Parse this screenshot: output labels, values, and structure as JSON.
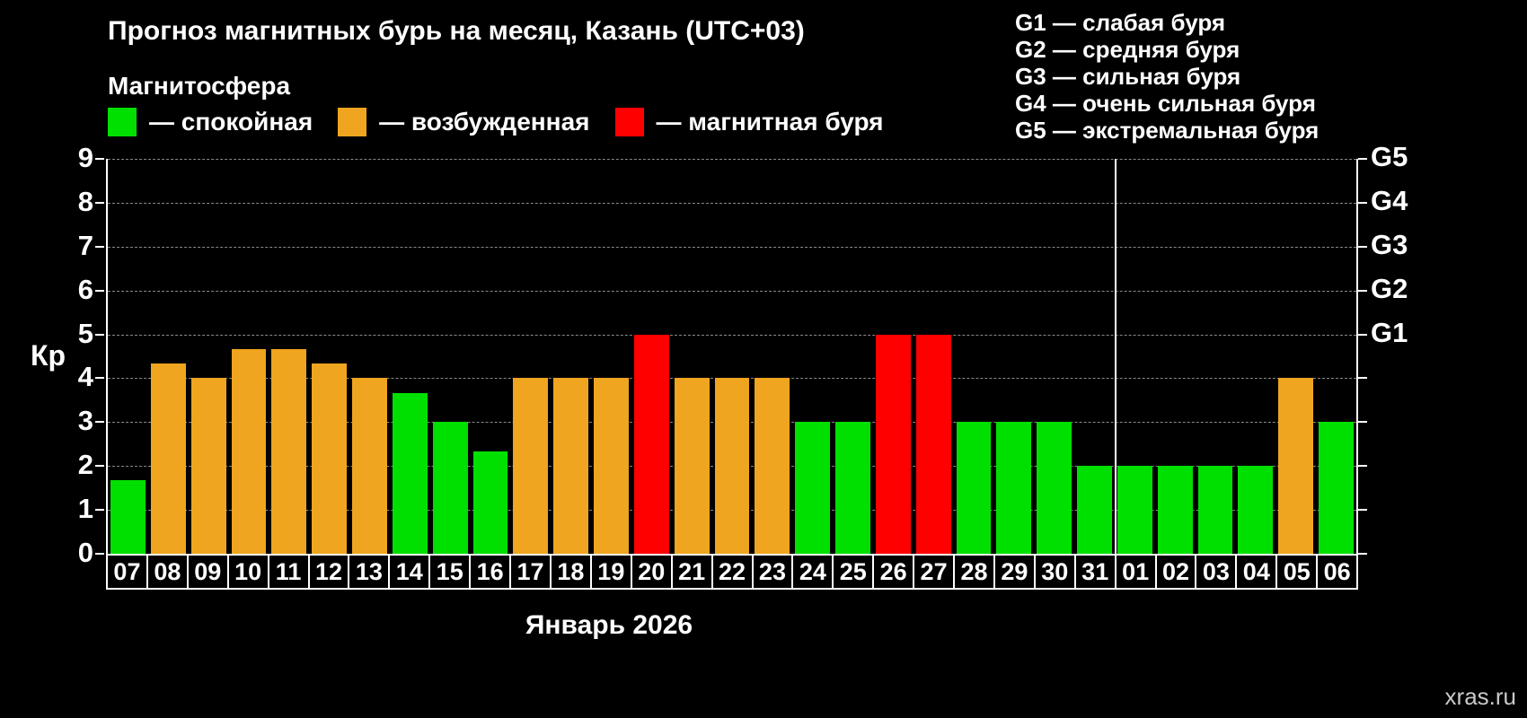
{
  "magnetosphere": {
    "heading": "Магнитосфера",
    "items": [
      {
        "key": "quiet",
        "label": "— спокойная",
        "color": "#00e000"
      },
      {
        "key": "excited",
        "label": "— возбужденная",
        "color": "#efa51f"
      },
      {
        "key": "storm",
        "label": "— магнитная буря",
        "color": "#fe0000"
      }
    ]
  },
  "g_legend": {
    "lines": [
      "G1 — слабая буря",
      "G2 — средняя буря",
      "G3 — сильная буря",
      "G4 — очень сильная буря",
      "G5 — экстремальная буря"
    ]
  },
  "axes": {
    "y_label": "Кр",
    "x_label": "Январь 2026"
  },
  "watermark": "xras.ru",
  "chart_data": {
    "type": "bar",
    "title": "Прогноз магнитных бурь на месяц, Казань (UTC+03)",
    "categories": [
      "07",
      "08",
      "09",
      "10",
      "11",
      "12",
      "13",
      "14",
      "15",
      "16",
      "17",
      "18",
      "19",
      "20",
      "21",
      "22",
      "23",
      "24",
      "25",
      "26",
      "27",
      "28",
      "29",
      "30",
      "31",
      "01",
      "02",
      "03",
      "04",
      "05",
      "06"
    ],
    "values": [
      1.67,
      4.33,
      4,
      4.67,
      4.67,
      4.33,
      4,
      3.67,
      3,
      2.33,
      4,
      4,
      4,
      5,
      4,
      4,
      4,
      3,
      3,
      5,
      5,
      3,
      3,
      3,
      2,
      2,
      2,
      2,
      2,
      4,
      3
    ],
    "statuses": [
      "quiet",
      "excited",
      "excited",
      "excited",
      "excited",
      "excited",
      "excited",
      "quiet",
      "quiet",
      "quiet",
      "excited",
      "excited",
      "excited",
      "storm",
      "excited",
      "excited",
      "excited",
      "quiet",
      "quiet",
      "storm",
      "storm",
      "quiet",
      "quiet",
      "quiet",
      "quiet",
      "quiet",
      "quiet",
      "quiet",
      "quiet",
      "excited",
      "quiet"
    ],
    "xlabel": "Январь 2026",
    "ylabel": "Кр",
    "ylim": [
      0,
      9
    ],
    "yticks": [
      0,
      1,
      2,
      3,
      4,
      5,
      6,
      7,
      8,
      9
    ],
    "right_axis_ticks": [
      {
        "label": "G1",
        "value": 5
      },
      {
        "label": "G2",
        "value": 6
      },
      {
        "label": "G3",
        "value": 7
      },
      {
        "label": "G4",
        "value": 8
      },
      {
        "label": "G5",
        "value": 9
      }
    ],
    "month_separator_after_index": 24,
    "grid": "dashed"
  }
}
